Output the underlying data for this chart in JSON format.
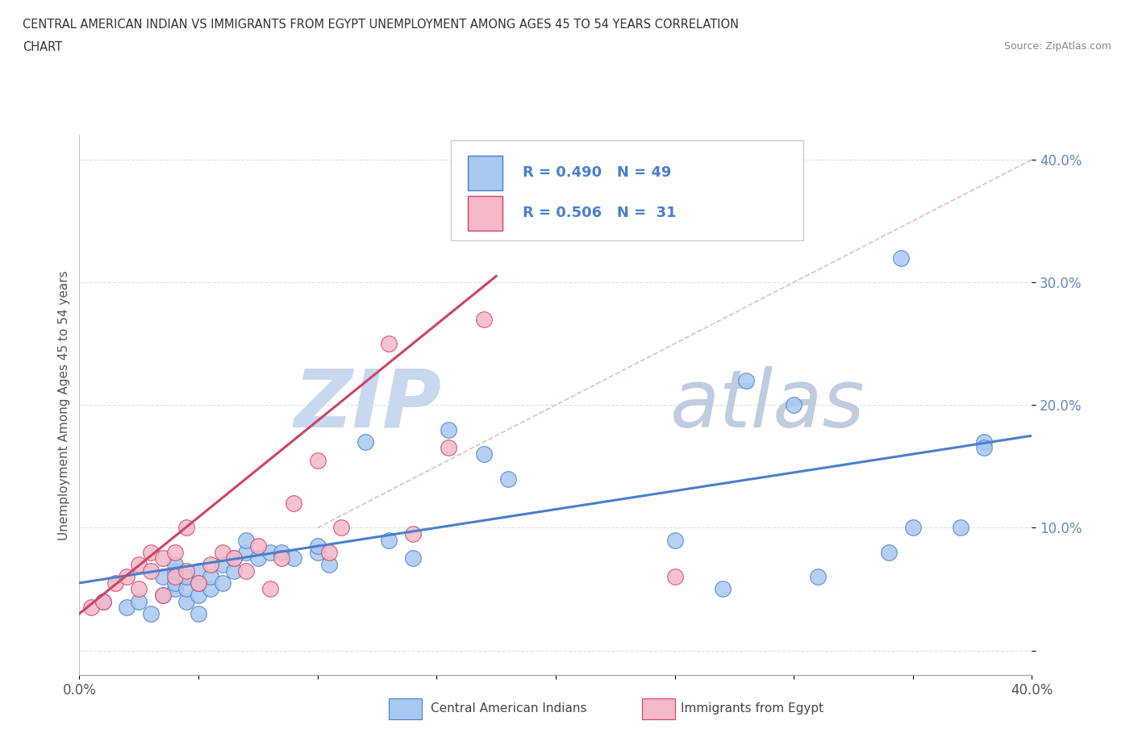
{
  "title_line1": "CENTRAL AMERICAN INDIAN VS IMMIGRANTS FROM EGYPT UNEMPLOYMENT AMONG AGES 45 TO 54 YEARS CORRELATION",
  "title_line2": "CHART",
  "source_text": "Source: ZipAtlas.com",
  "ylabel": "Unemployment Among Ages 45 to 54 years",
  "xlim": [
    0.0,
    0.4
  ],
  "ylim": [
    -0.02,
    0.42
  ],
  "xticks": [
    0.0,
    0.05,
    0.1,
    0.15,
    0.2,
    0.25,
    0.3,
    0.35,
    0.4
  ],
  "yticks": [
    0.0,
    0.1,
    0.2,
    0.3,
    0.4
  ],
  "legend_labels": [
    "Central American Indians",
    "Immigrants from Egypt"
  ],
  "blue_color": "#a8c8f0",
  "pink_color": "#f4b8c8",
  "blue_line_color": "#4a7fcc",
  "pink_line_color": "#cc4466",
  "ref_line_color": "#ddc0c0",
  "watermark_zip_color": "#c0d0e8",
  "watermark_atlas_color": "#c0cce0",
  "background_color": "#ffffff",
  "grid_color": "#e0e0e0",
  "tick_color": "#6688bb",
  "blue_scatter_x": [
    0.01,
    0.02,
    0.025,
    0.03,
    0.035,
    0.035,
    0.04,
    0.04,
    0.04,
    0.04,
    0.045,
    0.045,
    0.045,
    0.05,
    0.05,
    0.05,
    0.05,
    0.055,
    0.055,
    0.06,
    0.06,
    0.065,
    0.065,
    0.07,
    0.07,
    0.075,
    0.08,
    0.085,
    0.09,
    0.1,
    0.1,
    0.105,
    0.12,
    0.13,
    0.14,
    0.155,
    0.17,
    0.18,
    0.25,
    0.27,
    0.28,
    0.3,
    0.31,
    0.34,
    0.345,
    0.35,
    0.37,
    0.38,
    0.38
  ],
  "blue_scatter_y": [
    0.04,
    0.035,
    0.04,
    0.03,
    0.045,
    0.06,
    0.05,
    0.055,
    0.065,
    0.07,
    0.04,
    0.05,
    0.06,
    0.03,
    0.045,
    0.055,
    0.065,
    0.05,
    0.06,
    0.055,
    0.07,
    0.065,
    0.075,
    0.08,
    0.09,
    0.075,
    0.08,
    0.08,
    0.075,
    0.08,
    0.085,
    0.07,
    0.17,
    0.09,
    0.075,
    0.18,
    0.16,
    0.14,
    0.09,
    0.05,
    0.22,
    0.2,
    0.06,
    0.08,
    0.32,
    0.1,
    0.1,
    0.17,
    0.165
  ],
  "pink_scatter_x": [
    0.005,
    0.01,
    0.015,
    0.02,
    0.025,
    0.025,
    0.03,
    0.03,
    0.035,
    0.035,
    0.04,
    0.04,
    0.045,
    0.045,
    0.05,
    0.055,
    0.06,
    0.065,
    0.07,
    0.075,
    0.08,
    0.085,
    0.09,
    0.1,
    0.105,
    0.11,
    0.13,
    0.14,
    0.155,
    0.17,
    0.25
  ],
  "pink_scatter_y": [
    0.035,
    0.04,
    0.055,
    0.06,
    0.05,
    0.07,
    0.065,
    0.08,
    0.045,
    0.075,
    0.06,
    0.08,
    0.065,
    0.1,
    0.055,
    0.07,
    0.08,
    0.075,
    0.065,
    0.085,
    0.05,
    0.075,
    0.12,
    0.155,
    0.08,
    0.1,
    0.25,
    0.095,
    0.165,
    0.27,
    0.06
  ],
  "blue_trend_x": [
    0.0,
    0.4
  ],
  "blue_trend_y": [
    0.055,
    0.175
  ],
  "pink_trend_x": [
    0.0,
    0.175
  ],
  "pink_trend_y": [
    0.03,
    0.305
  ],
  "ref_line_x": [
    0.1,
    0.42
  ],
  "ref_line_y": [
    0.1,
    0.42
  ]
}
